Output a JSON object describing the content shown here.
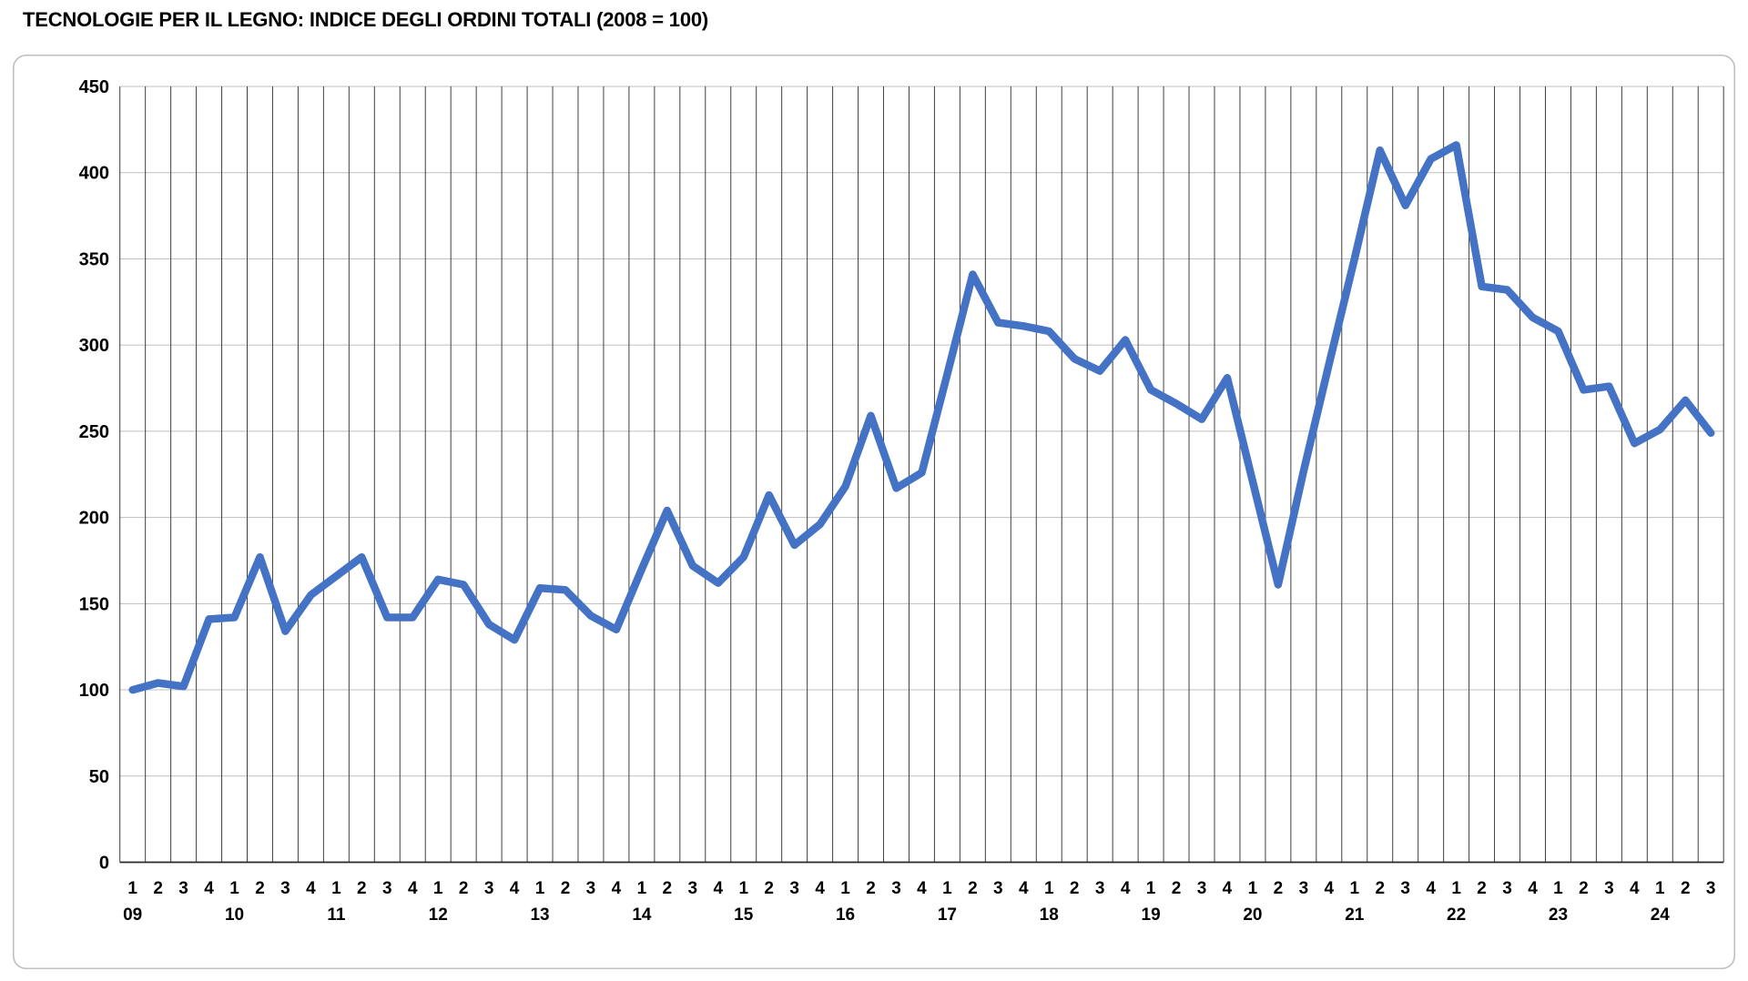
{
  "title": "TECNOLOGIE PER IL LEGNO: INDICE DEGLI ORDINI TOTALI (2008 = 100)",
  "chart_data": {
    "type": "line",
    "title": "TECNOLOGIE PER IL LEGNO: INDICE DEGLI ORDINI TOTALI (2008 = 100)",
    "x_quarter_labels": [
      "1",
      "2",
      "3",
      "4",
      "1",
      "2",
      "3",
      "4",
      "1",
      "2",
      "3",
      "4",
      "1",
      "2",
      "3",
      "4",
      "1",
      "2",
      "3",
      "4",
      "1",
      "2",
      "3",
      "4",
      "1",
      "2",
      "3",
      "4",
      "1",
      "2",
      "3",
      "4",
      "1",
      "2",
      "3",
      "4",
      "1",
      "2",
      "3",
      "4",
      "1",
      "2",
      "3",
      "4",
      "1",
      "2",
      "3",
      "4",
      "1",
      "2",
      "3",
      "4",
      "1",
      "2",
      "3",
      "4",
      "1",
      "2",
      "3",
      "4",
      "1",
      "2",
      "3"
    ],
    "x_year_labels": [
      "09",
      "10",
      "11",
      "12",
      "13",
      "14",
      "15",
      "16",
      "17",
      "18",
      "19",
      "20",
      "21",
      "22",
      "23",
      "24"
    ],
    "values": [
      100,
      104,
      102,
      141,
      142,
      177,
      134,
      155,
      166,
      177,
      142,
      142,
      164,
      161,
      138,
      129,
      159,
      158,
      143,
      135,
      170,
      204,
      172,
      162,
      177,
      213,
      184,
      196,
      218,
      259,
      217,
      226,
      283,
      341,
      313,
      311,
      308,
      292,
      285,
      303,
      274,
      266,
      257,
      281,
      221,
      161,
      227,
      289,
      350,
      413,
      381,
      408,
      416,
      334,
      332,
      316,
      308,
      274,
      276,
      243,
      251,
      268,
      249
    ],
    "ylim": [
      0,
      450
    ],
    "y_ticks": [
      0,
      50,
      100,
      150,
      200,
      250,
      300,
      350,
      400,
      450
    ],
    "grid": "both",
    "legend": "none",
    "colors": {
      "line": "#4472C4",
      "vertical_grid": "#404040",
      "horizontal_grid": "#BFBFBF",
      "axis": "#262626",
      "frame_border": "#BFBFBF",
      "text": "#000000",
      "background": "#FFFFFF"
    }
  }
}
